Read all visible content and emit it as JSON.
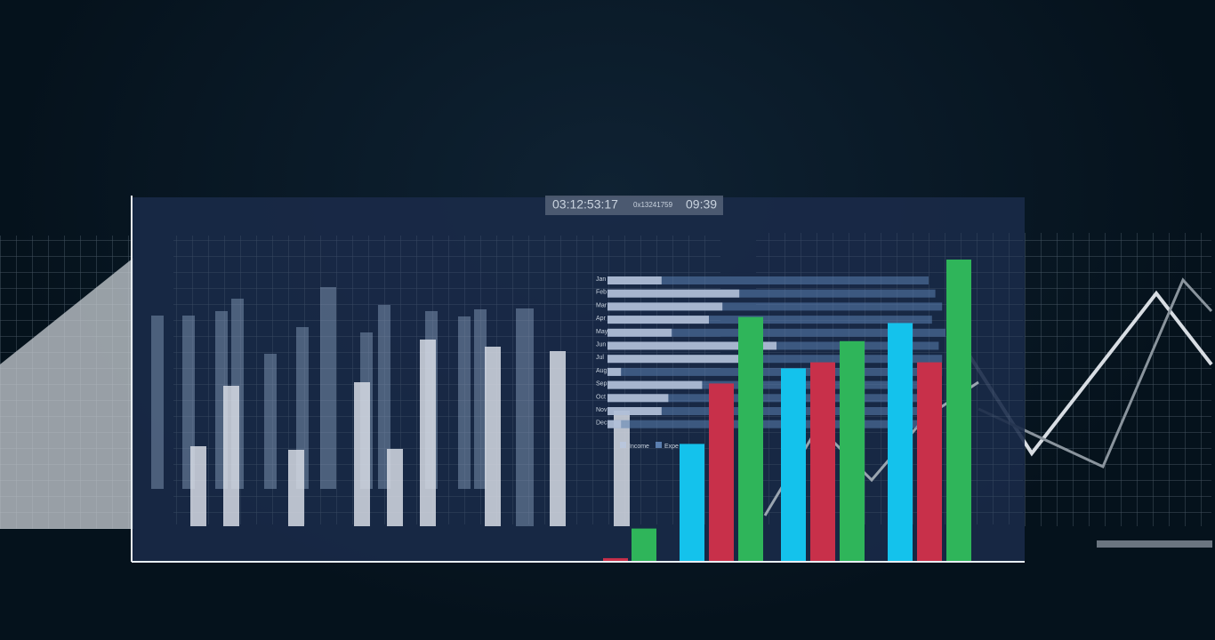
{
  "header": {
    "timecode": "03:12:53:17",
    "hex": "0x13241759",
    "clock": "09:39"
  },
  "hbar_chart": {
    "type": "hbar",
    "months": [
      "Jan",
      "Feb",
      "Mar",
      "Apr",
      "May",
      "Jun",
      "Jul",
      "Aug",
      "Sep",
      "Oct",
      "Nov",
      "Dec"
    ],
    "xlim": [
      0,
      100
    ],
    "series": [
      {
        "name": "Income",
        "color": "#b9c6dc",
        "values": [
          16,
          39,
          34,
          30,
          19,
          50,
          39,
          4,
          28,
          18,
          16,
          4
        ]
      },
      {
        "name": "Expe",
        "color": "#5b7fb0",
        "values": [
          95,
          97,
          99,
          96,
          100,
          98,
          99,
          99,
          97,
          96,
          99,
          98
        ]
      }
    ]
  },
  "chart_data": {
    "type": "bar",
    "ylim": [
      0,
      100
    ],
    "values": [
      1.2,
      11,
      39,
      59,
      81,
      64,
      66,
      73,
      79,
      66,
      100
    ],
    "colors": [
      "#c8304a",
      "#2fb55a",
      "#14c2ec",
      "#c8304a",
      "#2fb55a",
      "#14c2ec",
      "#c8304a",
      "#2fb55a",
      "#14c2ec",
      "#c8304a",
      "#2fb55a"
    ]
  }
}
